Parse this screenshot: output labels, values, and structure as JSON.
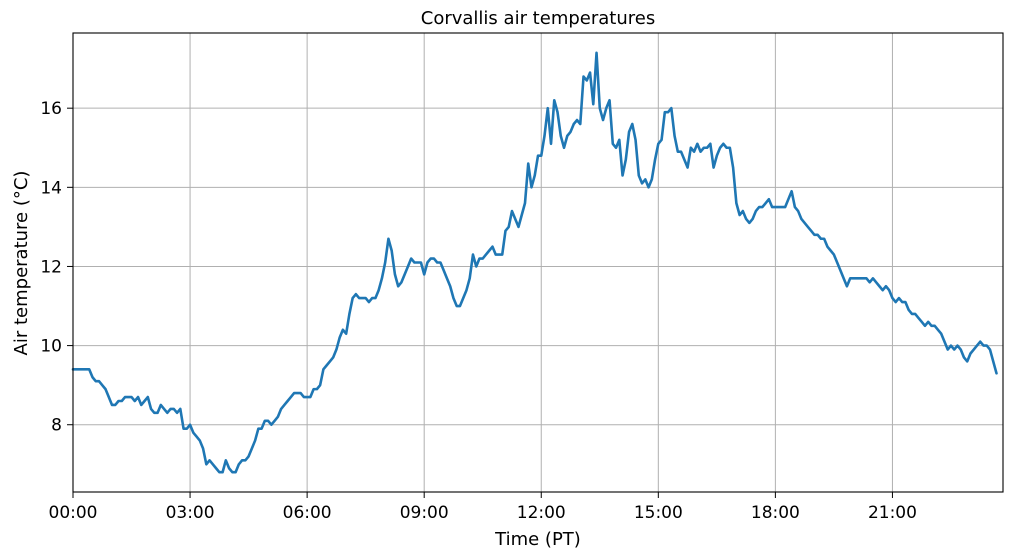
{
  "chart_data": {
    "type": "line",
    "title": "Corvallis air temperatures",
    "xlabel": "Time (PT)",
    "ylabel": "Air temperature (°C)",
    "xlim": [
      "00:00",
      "23:50"
    ],
    "ylim": [
      6.3,
      17.9
    ],
    "x_ticks": [
      "00:00",
      "03:00",
      "06:00",
      "09:00",
      "12:00",
      "15:00",
      "18:00",
      "21:00"
    ],
    "y_ticks": [
      8,
      10,
      12,
      14,
      16
    ],
    "grid": true,
    "colors": {
      "series": "#1f77b4"
    },
    "series": [
      {
        "sampling_interval": "5 min",
        "x_start": "00:00",
        "values": [
          9.4,
          9.4,
          9.4,
          9.4,
          9.4,
          9.4,
          9.2,
          9.1,
          9.1,
          9.0,
          8.9,
          8.7,
          8.5,
          8.5,
          8.6,
          8.6,
          8.7,
          8.7,
          8.7,
          8.6,
          8.7,
          8.5,
          8.6,
          8.7,
          8.4,
          8.3,
          8.3,
          8.5,
          8.4,
          8.3,
          8.4,
          8.4,
          8.3,
          8.4,
          7.9,
          7.9,
          8.0,
          7.8,
          7.7,
          7.6,
          7.4,
          7.0,
          7.1,
          7.0,
          6.9,
          6.8,
          6.8,
          7.1,
          6.9,
          6.8,
          6.8,
          7.0,
          7.1,
          7.1,
          7.2,
          7.4,
          7.6,
          7.9,
          7.9,
          8.1,
          8.1,
          8.0,
          8.1,
          8.2,
          8.4,
          8.5,
          8.6,
          8.7,
          8.8,
          8.8,
          8.8,
          8.7,
          8.7,
          8.7,
          8.9,
          8.9,
          9.0,
          9.4,
          9.5,
          9.6,
          9.7,
          9.9,
          10.2,
          10.4,
          10.3,
          10.8,
          11.2,
          11.3,
          11.2,
          11.2,
          11.2,
          11.1,
          11.2,
          11.2,
          11.4,
          11.7,
          12.1,
          12.7,
          12.4,
          11.8,
          11.5,
          11.6,
          11.8,
          12.0,
          12.2,
          12.1,
          12.1,
          12.1,
          11.8,
          12.1,
          12.2,
          12.2,
          12.1,
          12.1,
          11.9,
          11.7,
          11.5,
          11.2,
          11.0,
          11.0,
          11.2,
          11.4,
          11.7,
          12.3,
          12.0,
          12.2,
          12.2,
          12.3,
          12.4,
          12.5,
          12.3,
          12.3,
          12.3,
          12.9,
          13.0,
          13.4,
          13.2,
          13.0,
          13.3,
          13.6,
          14.6,
          14.0,
          14.3,
          14.8,
          14.8,
          15.3,
          16.0,
          15.1,
          16.2,
          15.9,
          15.3,
          15.0,
          15.3,
          15.4,
          15.6,
          15.7,
          15.6,
          16.8,
          16.7,
          16.9,
          16.1,
          17.4,
          16.0,
          15.7,
          16.0,
          16.2,
          15.1,
          15.0,
          15.2,
          14.3,
          14.7,
          15.4,
          15.6,
          15.2,
          14.3,
          14.1,
          14.2,
          14.0,
          14.2,
          14.7,
          15.1,
          15.2,
          15.9,
          15.9,
          16.0,
          15.3,
          14.9,
          14.9,
          14.7,
          14.5,
          15.0,
          14.9,
          15.1,
          14.9,
          15.0,
          15.0,
          15.1,
          14.5,
          14.8,
          15.0,
          15.1,
          15.0,
          15.0,
          14.5,
          13.6,
          13.3,
          13.4,
          13.2,
          13.1,
          13.2,
          13.4,
          13.5,
          13.5,
          13.6,
          13.7,
          13.5,
          13.5,
          13.5,
          13.5,
          13.5,
          13.7,
          13.9,
          13.5,
          13.4,
          13.2,
          13.1,
          13.0,
          12.9,
          12.8,
          12.8,
          12.7,
          12.7,
          12.5,
          12.4,
          12.3,
          12.1,
          11.9,
          11.7,
          11.5,
          11.7,
          11.7,
          11.7,
          11.7,
          11.7,
          11.7,
          11.6,
          11.7,
          11.6,
          11.5,
          11.4,
          11.5,
          11.4,
          11.2,
          11.1,
          11.2,
          11.1,
          11.1,
          10.9,
          10.8,
          10.8,
          10.7,
          10.6,
          10.5,
          10.6,
          10.5,
          10.5,
          10.4,
          10.3,
          10.1,
          9.9,
          10.0,
          9.9,
          10.0,
          9.9,
          9.7,
          9.6,
          9.8,
          9.9,
          10.0,
          10.1,
          10.0,
          10.0,
          9.9,
          9.6,
          9.3
        ]
      }
    ]
  }
}
